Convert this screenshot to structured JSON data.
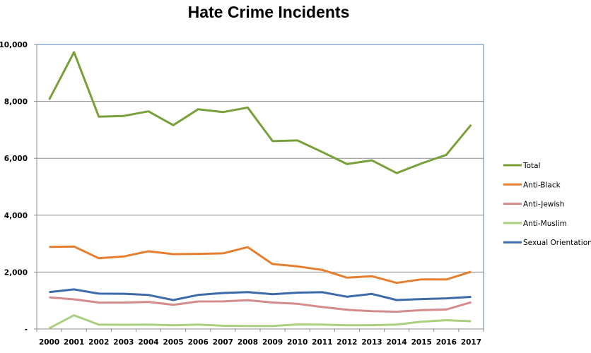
{
  "chart_data": {
    "type": "line",
    "title": "Hate Crime Incidents",
    "xlabel": "",
    "ylabel": "",
    "ylim": [
      0,
      10000
    ],
    "yticks": [
      0,
      2000,
      4000,
      6000,
      8000,
      10000
    ],
    "ytick_labels": [
      "-",
      "2,000",
      "4,000",
      "6,000",
      "8,000",
      "10,000"
    ],
    "grid": true,
    "legend": "right",
    "categories": [
      "2000",
      "2001",
      "2002",
      "2003",
      "2004",
      "2005",
      "2006",
      "2007",
      "2008",
      "2009",
      "2010",
      "2011",
      "2012",
      "2013",
      "2014",
      "2015",
      "2016",
      "2017"
    ],
    "series": [
      {
        "name": "Total",
        "color": "#77a03a",
        "values": [
          8063,
          9730,
          7462,
          7489,
          7649,
          7163,
          7722,
          7624,
          7783,
          6604,
          6628,
          6222,
          5796,
          5928,
          5479,
          5818,
          6121,
          7175
        ]
      },
      {
        "name": "Anti-Black",
        "color": "#e57e2e",
        "values": [
          2884,
          2899,
          2486,
          2548,
          2731,
          2630,
          2640,
          2658,
          2876,
          2284,
          2201,
          2076,
          1805,
          1856,
          1621,
          1745,
          1739,
          2013
        ]
      },
      {
        "name": "Anti-Jewish",
        "color": "#d48b8b",
        "values": [
          1109,
          1043,
          931,
          927,
          954,
          848,
          967,
          969,
          1013,
          931,
          887,
          771,
          674,
          625,
          609,
          664,
          684,
          938
        ]
      },
      {
        "name": "Anti-Muslim",
        "color": "#a9cf7f",
        "values": [
          28,
          481,
          155,
          149,
          156,
          128,
          156,
          115,
          105,
          107,
          160,
          157,
          130,
          135,
          154,
          257,
          307,
          273
        ]
      },
      {
        "name": "Sexual Orientation",
        "color": "#3d6aa8",
        "values": [
          1299,
          1393,
          1244,
          1239,
          1197,
          1017,
          1195,
          1265,
          1297,
          1223,
          1277,
          1293,
          1135,
          1233,
          1017,
          1053,
          1076,
          1130
        ]
      }
    ]
  }
}
